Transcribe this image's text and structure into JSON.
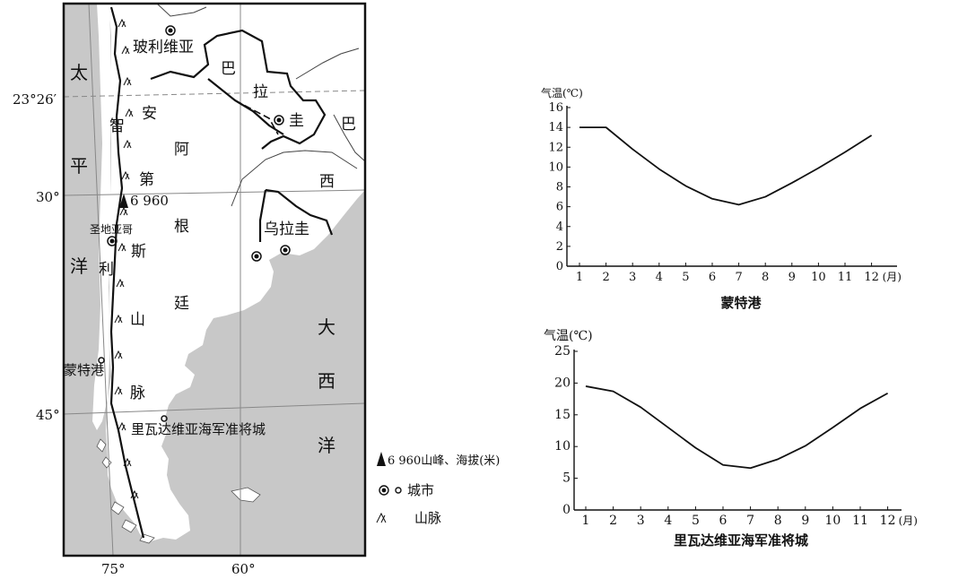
{
  "map": {
    "countries": {
      "bolivia": "玻利维亚",
      "paraguay_1": "巴",
      "paraguay_2": "拉",
      "paraguay_3": "圭",
      "brazil_1": "巴",
      "brazil_2": "西",
      "uruguay": "乌拉圭",
      "argentina_1": "阿",
      "argentina_2": "根",
      "argentina_3": "廷",
      "chile_1": "智",
      "chile_2": "利"
    },
    "oceans": {
      "pacific_1": "太",
      "pacific_2": "平",
      "pacific_3": "洋",
      "atlantic_1": "大",
      "atlantic_2": "西",
      "atlantic_3": "洋"
    },
    "mountains": {
      "andes_1": "安",
      "andes_2": "第",
      "andes_3": "斯",
      "andes_4": "山",
      "andes_5": "脉"
    },
    "cities": {
      "santiago": "圣地亚哥",
      "montt": "蒙特港",
      "rivadavia": "里瓦达维亚海军准将城"
    },
    "peak": "6 960",
    "latitudes": {
      "tropic": "23°26′",
      "lat30": "30°",
      "lat45": "45°"
    },
    "longitudes": {
      "lon75": "75°",
      "lon60": "60°"
    }
  },
  "legend": {
    "peak": "6 960山峰、海拔(米)",
    "city": "城市",
    "mountain": "山脉"
  },
  "colors": {
    "land": "#ffffff",
    "sea": "#c8c8c8",
    "line": "#111111"
  },
  "chart_data": [
    {
      "type": "line",
      "title": "蒙特港",
      "ylabel": "气温(℃)",
      "x_unit": "(月)",
      "x": [
        1,
        2,
        3,
        4,
        5,
        6,
        7,
        8,
        9,
        10,
        11,
        12
      ],
      "series": [
        {
          "values": [
            14,
            14,
            11.8,
            9.8,
            8.1,
            6.8,
            6.2,
            7.0,
            8.4,
            9.9,
            11.5,
            13.2
          ]
        }
      ],
      "ylim": [
        0,
        16
      ],
      "yticks": [
        0,
        2,
        4,
        6,
        8,
        10,
        12,
        14,
        16
      ]
    },
    {
      "type": "line",
      "title": "里瓦达维亚海军准将城",
      "ylabel": "气温(℃)",
      "x_unit": "(月)",
      "x": [
        1,
        2,
        3,
        4,
        5,
        6,
        7,
        8,
        9,
        10,
        11,
        12
      ],
      "series": [
        {
          "values": [
            19.5,
            18.7,
            16.2,
            13.0,
            9.8,
            7.1,
            6.6,
            8.0,
            10.1,
            13.0,
            16.0,
            18.4
          ]
        }
      ],
      "ylim": [
        0,
        25
      ],
      "yticks": [
        0,
        5,
        10,
        15,
        20,
        25
      ]
    }
  ]
}
